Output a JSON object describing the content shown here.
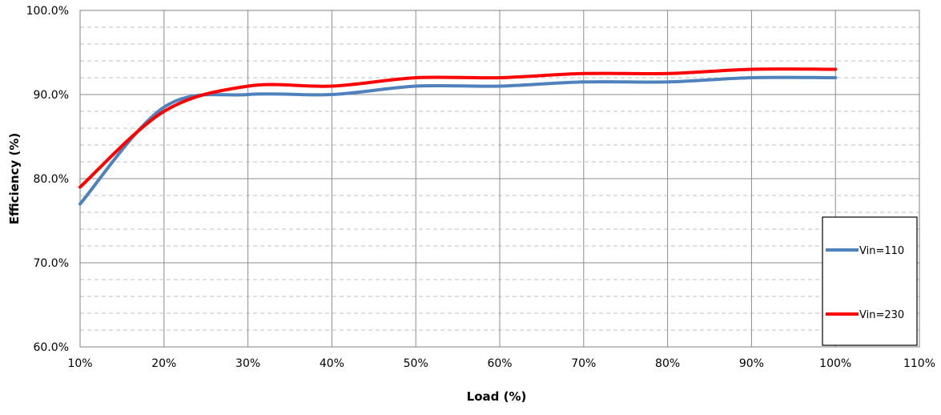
{
  "chart_data": {
    "type": "line",
    "xlabel": "Load (%)",
    "ylabel": "Efficiency (%)",
    "xlim": [
      10,
      110
    ],
    "ylim": [
      60,
      100
    ],
    "x_ticks": [
      10,
      20,
      30,
      40,
      50,
      60,
      70,
      80,
      90,
      100,
      110
    ],
    "x_tick_labels": [
      "10%",
      "20%",
      "30%",
      "40%",
      "50%",
      "60%",
      "70%",
      "80%",
      "90%",
      "100%",
      "110%"
    ],
    "y_ticks": [
      60,
      70,
      80,
      90,
      100
    ],
    "y_tick_labels": [
      "60.0%",
      "70.0%",
      "80.0%",
      "90.0%",
      "100.0%"
    ],
    "y_minor_step": 2,
    "grid": true,
    "legend_position": "right",
    "series": [
      {
        "name": "Vin=110",
        "color": "#4f81bd",
        "x": [
          10,
          20,
          30,
          40,
          50,
          60,
          70,
          80,
          90,
          100
        ],
        "values": [
          77.0,
          88.5,
          90.0,
          90.0,
          91.0,
          91.0,
          91.5,
          91.5,
          92.0,
          92.0
        ]
      },
      {
        "name": "Vin=230",
        "color": "#ff0000",
        "x": [
          10,
          20,
          30,
          40,
          50,
          60,
          70,
          80,
          90,
          100
        ],
        "values": [
          79.0,
          88.0,
          91.0,
          91.0,
          92.0,
          92.0,
          92.5,
          92.5,
          93.0,
          93.0
        ]
      }
    ]
  }
}
